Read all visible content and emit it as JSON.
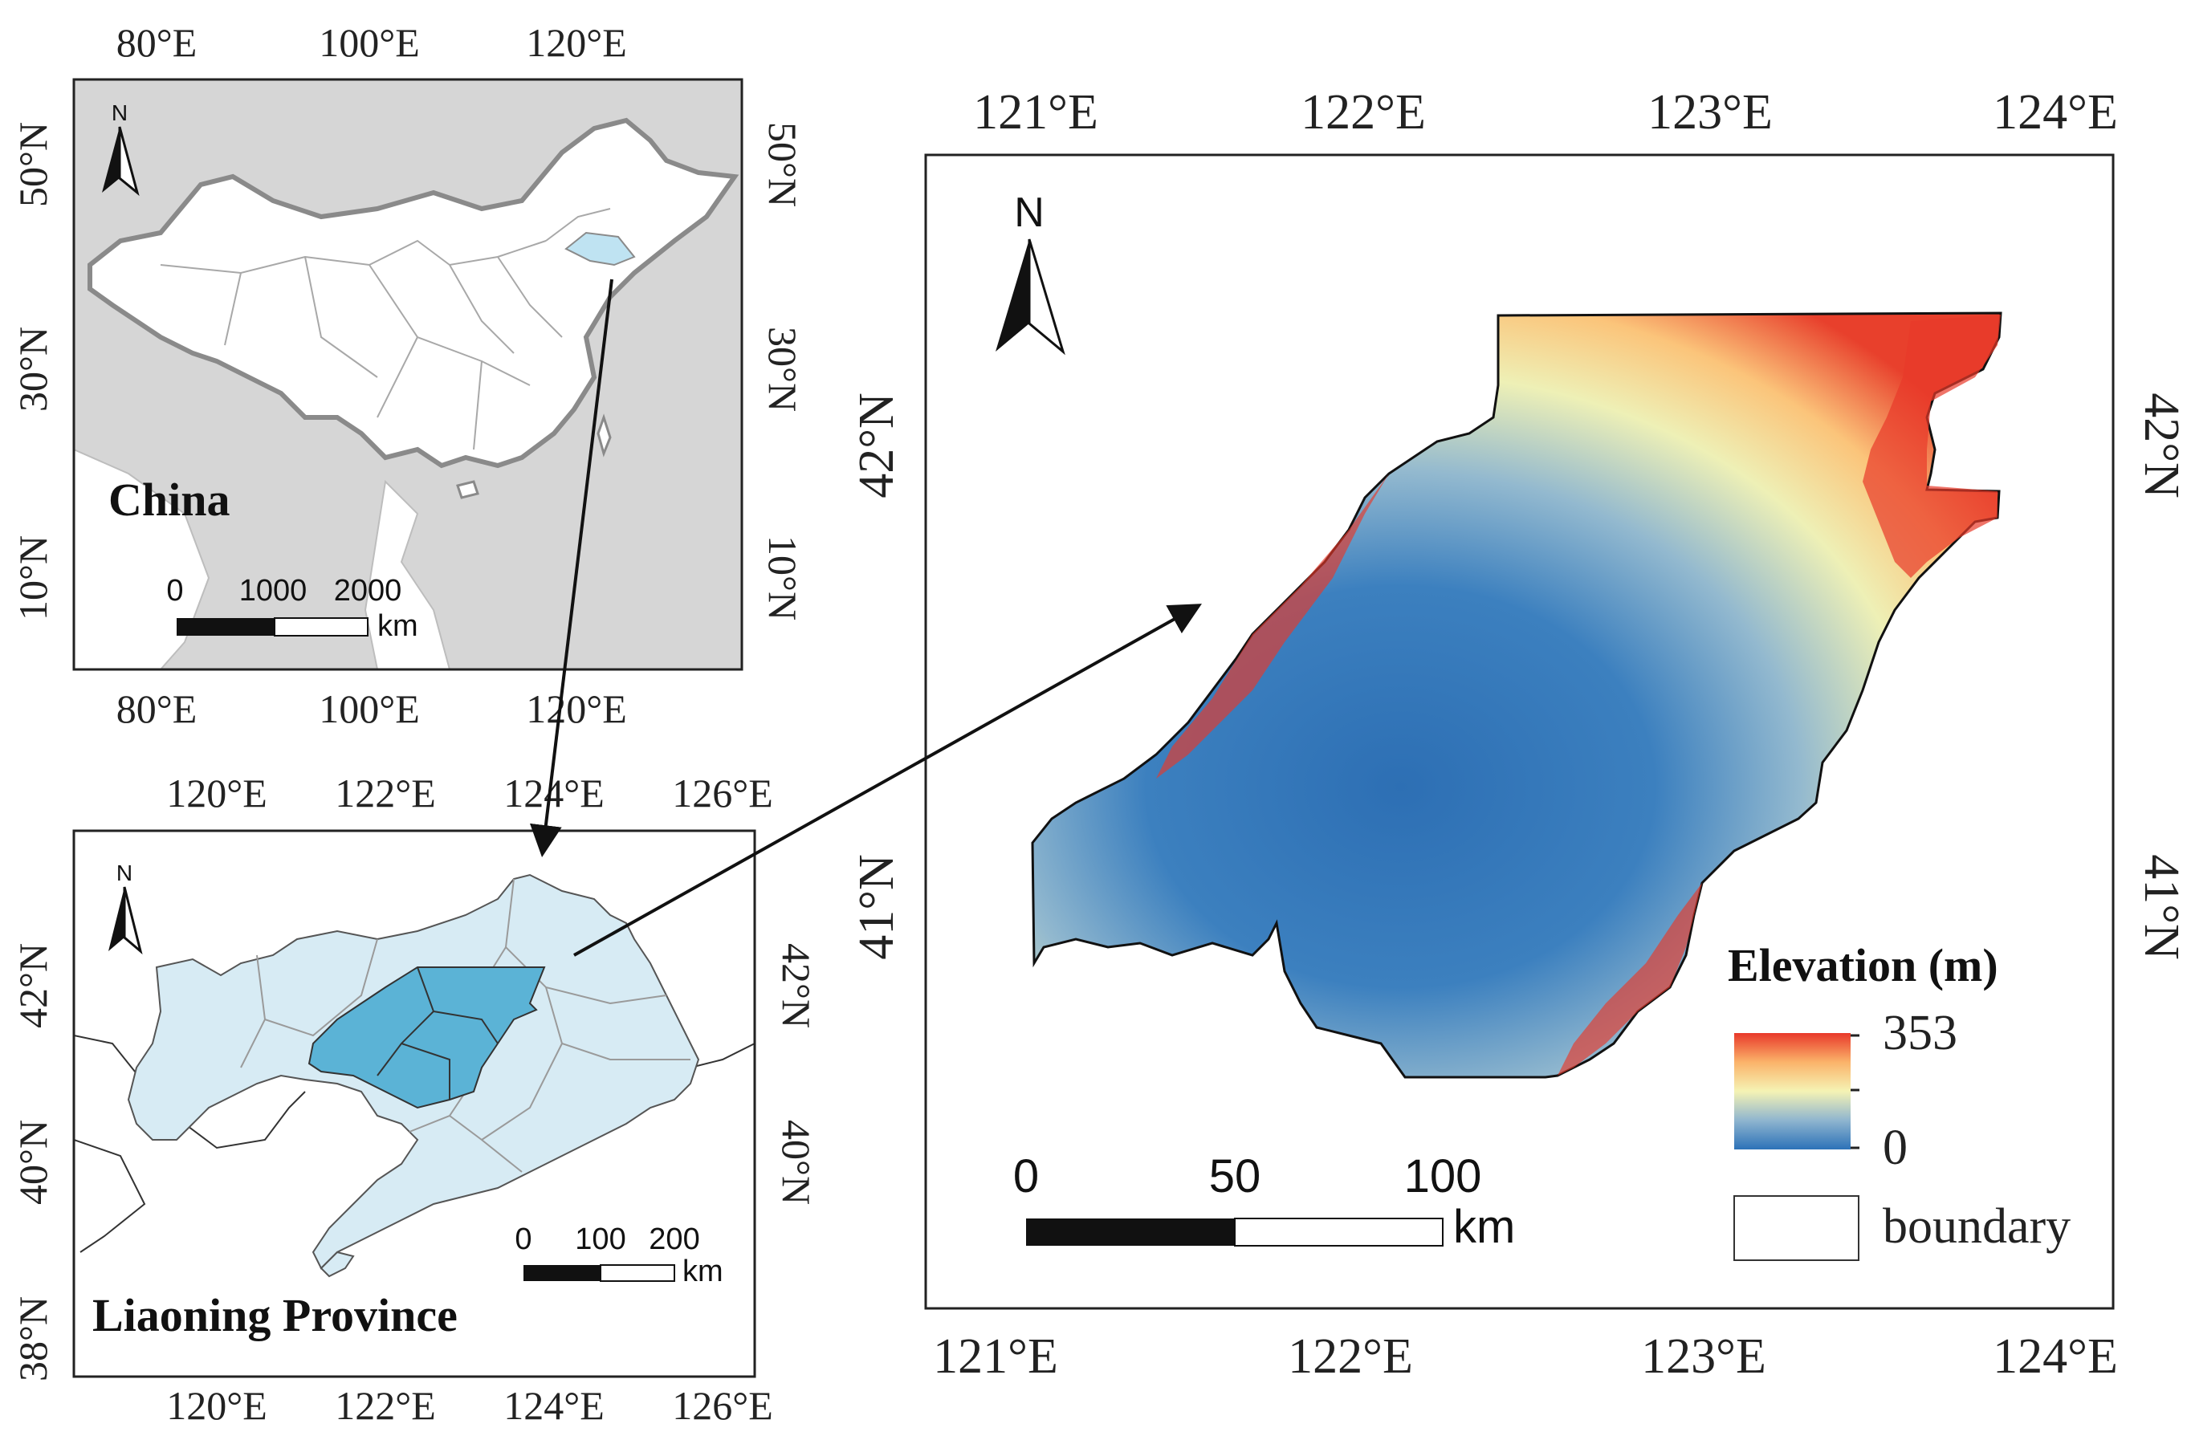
{
  "china_map": {
    "title": "China",
    "top_lon_labels": [
      "80°E",
      "100°E",
      "120°E"
    ],
    "bottom_lon_labels": [
      "80°E",
      "100°E",
      "120°E"
    ],
    "left_lat_labels": [
      "50°N",
      "30°N",
      "10°N"
    ],
    "right_lat_labels": [
      "50°N",
      "30°N",
      "10°N"
    ],
    "north_label": "N",
    "scale": {
      "ticks": [
        "0",
        "1000",
        "2000"
      ],
      "unit": "km"
    },
    "colors": {
      "land": "#ffffff",
      "background": "#d6d6d6",
      "highlight": "#bfe3f2",
      "border": "#8a8a8a"
    }
  },
  "liaoning_map": {
    "title": "Liaoning Province",
    "top_lon_labels": [
      "120°E",
      "122°E",
      "124°E",
      "126°E"
    ],
    "bottom_lon_labels": [
      "120°E",
      "122°E",
      "124°E",
      "126°E"
    ],
    "left_lat_labels": [
      "42°N",
      "40°N",
      "38°N"
    ],
    "right_lat_labels": [
      "42°N",
      "40°N"
    ],
    "north_label": "N",
    "scale": {
      "ticks": [
        "0",
        "100",
        "200"
      ],
      "unit": "km"
    },
    "colors": {
      "province": "#d7ebf4",
      "study_area": "#5bb3d6",
      "lines": "#9a9a9a"
    }
  },
  "elevation_map": {
    "top_lon_labels": [
      "121°E",
      "122°E",
      "123°E",
      "124°E"
    ],
    "bottom_lon_labels": [
      "121°E",
      "122°E",
      "123°E",
      "124°E"
    ],
    "left_lat_labels": [
      "42°N",
      "41°N"
    ],
    "right_lat_labels": [
      "42°N",
      "41°N"
    ],
    "north_label": "N",
    "scale": {
      "ticks": [
        "0",
        "50",
        "100"
      ],
      "unit": "km"
    },
    "legend": {
      "title": "Elevation (m)",
      "max_label": "353",
      "min_label": "0",
      "boundary_label": "boundary",
      "color_high": "#e8392a",
      "color_mid": "#f5f3b4",
      "color_low": "#2c72b8"
    }
  }
}
